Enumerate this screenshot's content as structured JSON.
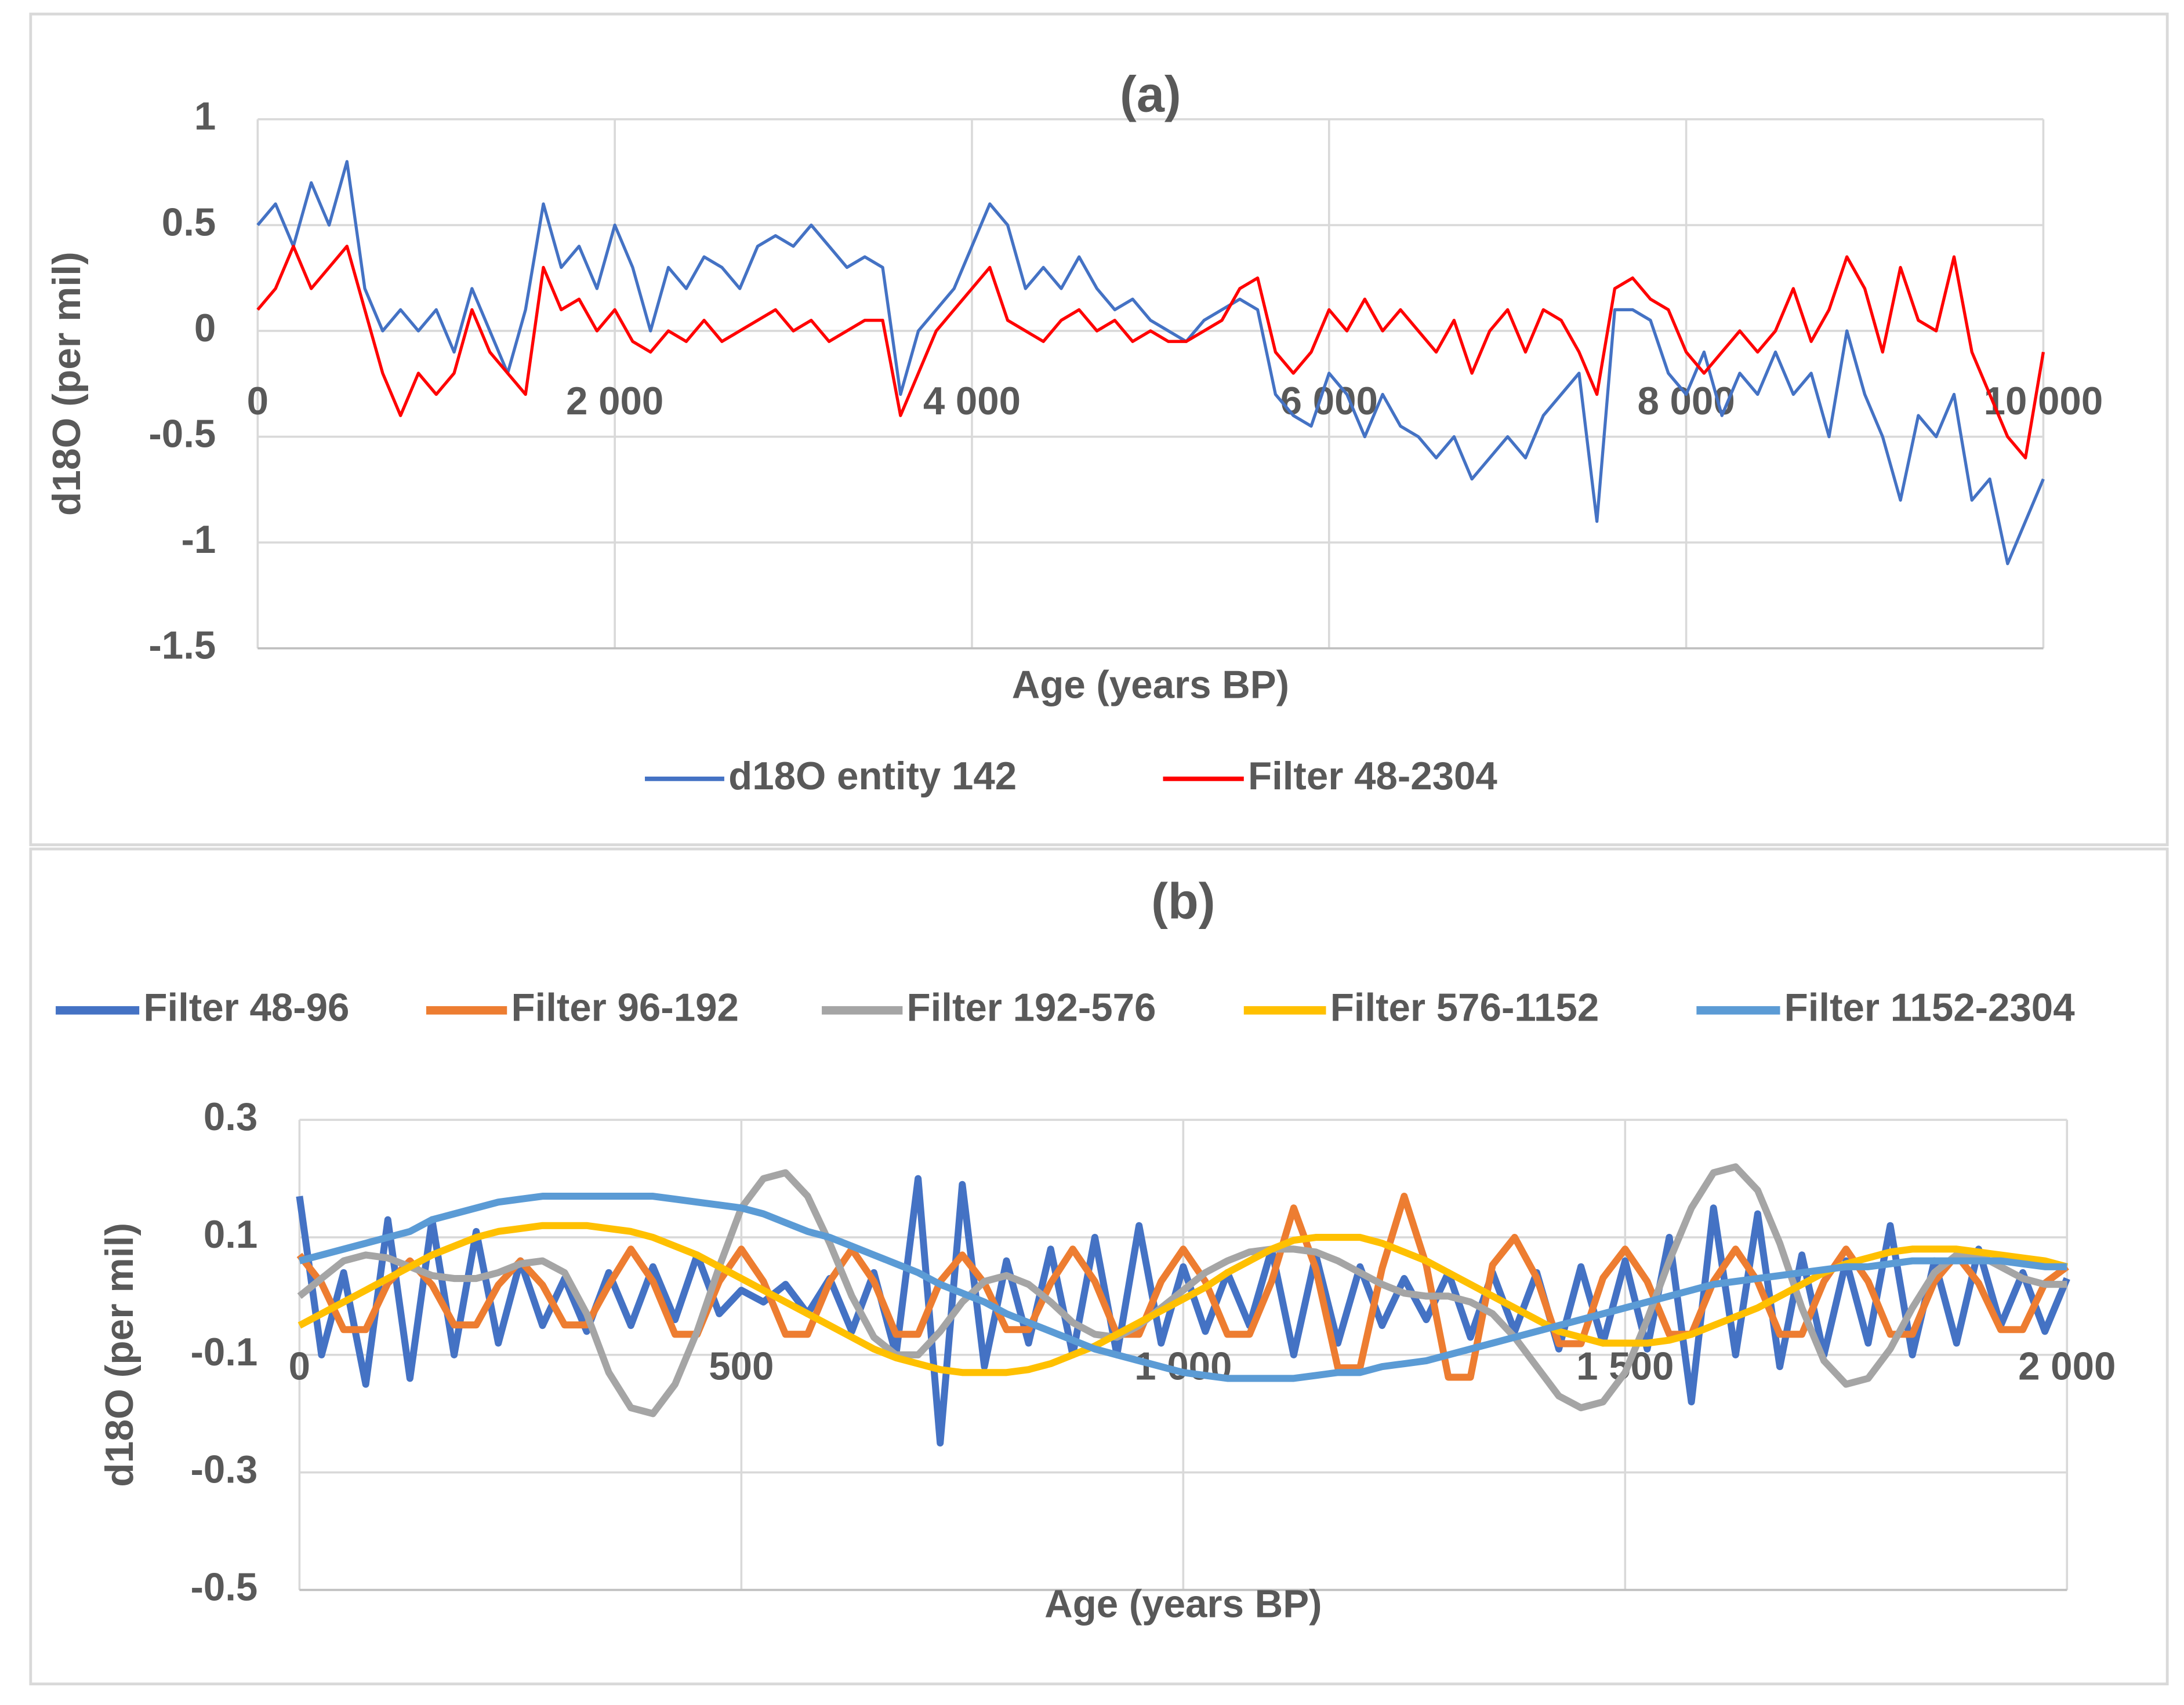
{
  "chart_data": [
    {
      "type": "line",
      "title": "(a)",
      "xlabel": "Age (years BP)",
      "ylabel": "d18O (per mil)",
      "x": [
        0,
        100,
        200,
        300,
        400,
        500,
        600,
        700,
        800,
        900,
        1000,
        1100,
        1200,
        1300,
        1400,
        1500,
        1600,
        1700,
        1800,
        1900,
        2000,
        2100,
        2200,
        2300,
        2400,
        2500,
        2600,
        2700,
        2800,
        2900,
        3000,
        3100,
        3200,
        3300,
        3400,
        3500,
        3600,
        3700,
        3800,
        3900,
        4000,
        4100,
        4200,
        4300,
        4400,
        4500,
        4600,
        4700,
        4800,
        4900,
        5000,
        5100,
        5200,
        5300,
        5400,
        5500,
        5600,
        5700,
        5800,
        5900,
        6000,
        6100,
        6200,
        6300,
        6400,
        6500,
        6600,
        6700,
        6800,
        6900,
        7000,
        7100,
        7200,
        7300,
        7400,
        7500,
        7600,
        7700,
        7800,
        7900,
        8000,
        8100,
        8200,
        8300,
        8400,
        8500,
        8600,
        8700,
        8800,
        8900,
        9000,
        9100,
        9200,
        9300,
        9400,
        9500,
        9600,
        9700,
        9800,
        9900,
        10000
      ],
      "series": [
        {
          "name": "d18O entity 142",
          "color": "#4472c4",
          "values": [
            0.5,
            0.6,
            0.4,
            0.7,
            0.5,
            0.8,
            0.2,
            0.0,
            0.1,
            0.0,
            0.1,
            -0.1,
            0.2,
            0.0,
            -0.2,
            0.1,
            0.6,
            0.3,
            0.4,
            0.2,
            0.5,
            0.3,
            0.0,
            0.3,
            0.2,
            0.35,
            0.3,
            0.2,
            0.4,
            0.45,
            0.4,
            0.5,
            0.4,
            0.3,
            0.35,
            0.3,
            -0.3,
            0.0,
            0.1,
            0.2,
            0.4,
            0.6,
            0.5,
            0.2,
            0.3,
            0.2,
            0.35,
            0.2,
            0.1,
            0.15,
            0.05,
            0.0,
            -0.05,
            0.05,
            0.1,
            0.15,
            0.1,
            -0.3,
            -0.4,
            -0.45,
            -0.2,
            -0.3,
            -0.5,
            -0.3,
            -0.45,
            -0.5,
            -0.6,
            -0.5,
            -0.7,
            -0.6,
            -0.5,
            -0.6,
            -0.4,
            -0.3,
            -0.2,
            -0.9,
            0.1,
            0.1,
            0.05,
            -0.2,
            -0.3,
            -0.1,
            -0.4,
            -0.2,
            -0.3,
            -0.1,
            -0.3,
            -0.2,
            -0.5,
            0.0,
            -0.3,
            -0.5,
            -0.8,
            -0.4,
            -0.5,
            -0.3,
            -0.8,
            -0.7,
            -1.1,
            -0.9,
            -0.7
          ]
        },
        {
          "name": "Filter 48-2304",
          "color": "#ff0000",
          "values": [
            0.1,
            0.2,
            0.4,
            0.2,
            0.3,
            0.4,
            0.1,
            -0.2,
            -0.4,
            -0.2,
            -0.3,
            -0.2,
            0.1,
            -0.1,
            -0.2,
            -0.3,
            0.3,
            0.1,
            0.15,
            0.0,
            0.1,
            -0.05,
            -0.1,
            0.0,
            -0.05,
            0.05,
            -0.05,
            0.0,
            0.05,
            0.1,
            0.0,
            0.05,
            -0.05,
            0.0,
            0.05,
            0.05,
            -0.4,
            -0.2,
            0.0,
            0.1,
            0.2,
            0.3,
            0.05,
            0.0,
            -0.05,
            0.05,
            0.1,
            0.0,
            0.05,
            -0.05,
            0.0,
            -0.05,
            -0.05,
            0.0,
            0.05,
            0.2,
            0.25,
            -0.1,
            -0.2,
            -0.1,
            0.1,
            0.0,
            0.15,
            0.0,
            0.1,
            0.0,
            -0.1,
            0.05,
            -0.2,
            0.0,
            0.1,
            -0.1,
            0.1,
            0.05,
            -0.1,
            -0.3,
            0.2,
            0.25,
            0.15,
            0.1,
            -0.1,
            -0.2,
            -0.1,
            0.0,
            -0.1,
            0.0,
            0.2,
            -0.05,
            0.1,
            0.35,
            0.2,
            -0.1,
            0.3,
            0.05,
            0.0,
            0.35,
            -0.1,
            -0.3,
            -0.5,
            -0.6,
            -0.1
          ]
        }
      ],
      "xlim": [
        0,
        10000
      ],
      "xticks": [
        0,
        {
          "value": 2000,
          "label": "2 000"
        },
        {
          "value": 4000,
          "label": "4 000"
        },
        {
          "value": 6000,
          "label": "6 000"
        },
        {
          "value": 8000,
          "label": "8 000"
        },
        {
          "value": 10000,
          "label": "10 000"
        }
      ],
      "ylim": [
        -1.5,
        1
      ],
      "yticks": [
        -1.5,
        -1,
        -0.5,
        0,
        0.5,
        1
      ],
      "grid": true,
      "legend": "bottom"
    },
    {
      "type": "line",
      "title": "(b)",
      "xlabel": "Age (years BP)",
      "ylabel": "d18O (per mil)",
      "x": [
        0,
        25,
        50,
        75,
        100,
        125,
        150,
        175,
        200,
        225,
        250,
        275,
        300,
        325,
        350,
        375,
        400,
        425,
        450,
        475,
        500,
        525,
        550,
        575,
        600,
        625,
        650,
        675,
        700,
        725,
        750,
        775,
        800,
        825,
        850,
        875,
        900,
        925,
        950,
        975,
        1000,
        1025,
        1050,
        1075,
        1100,
        1125,
        1150,
        1175,
        1200,
        1225,
        1250,
        1275,
        1300,
        1325,
        1350,
        1375,
        1400,
        1425,
        1450,
        1475,
        1500,
        1525,
        1550,
        1575,
        1600,
        1625,
        1650,
        1675,
        1700,
        1725,
        1750,
        1775,
        1800,
        1825,
        1850,
        1875,
        1900,
        1925,
        1950,
        1975,
        2000
      ],
      "series": [
        {
          "name": "Filter 48-96",
          "color": "#4472c4",
          "values": [
            0.17,
            -0.1,
            0.04,
            -0.15,
            0.13,
            -0.14,
            0.13,
            -0.1,
            0.11,
            -0.08,
            0.06,
            -0.05,
            0.03,
            -0.06,
            0.04,
            -0.05,
            0.05,
            -0.04,
            0.07,
            -0.03,
            0.01,
            -0.01,
            0.02,
            -0.03,
            0.03,
            -0.06,
            0.04,
            -0.1,
            0.2,
            -0.25,
            0.19,
            -0.12,
            0.06,
            -0.08,
            0.08,
            -0.1,
            0.1,
            -0.1,
            0.12,
            -0.08,
            0.05,
            -0.06,
            0.04,
            -0.05,
            0.08,
            -0.1,
            0.07,
            -0.08,
            0.05,
            -0.05,
            0.03,
            -0.04,
            0.04,
            -0.07,
            0.04,
            -0.06,
            0.04,
            -0.09,
            0.05,
            -0.08,
            0.06,
            -0.09,
            0.1,
            -0.18,
            0.15,
            -0.1,
            0.14,
            -0.12,
            0.07,
            -0.1,
            0.06,
            -0.08,
            0.12,
            -0.1,
            0.06,
            -0.08,
            0.08,
            -0.05,
            0.04,
            -0.06,
            0.03
          ]
        },
        {
          "name": "Filter 96-192",
          "color": "#ed7d31",
          "values": [
            0.07,
            0.022,
            -0.057,
            -0.057,
            0.022,
            0.06,
            0.019,
            -0.049,
            -0.049,
            0.019,
            0.06,
            0.019,
            -0.049,
            -0.049,
            0.019,
            0.08,
            0.025,
            -0.065,
            -0.065,
            0.025,
            0.08,
            0.025,
            -0.065,
            -0.065,
            0.025,
            0.08,
            0.025,
            -0.065,
            -0.065,
            0.025,
            0.07,
            0.022,
            -0.057,
            -0.057,
            0.022,
            0.08,
            0.025,
            -0.065,
            -0.065,
            0.025,
            0.08,
            0.025,
            -0.065,
            -0.065,
            0.025,
            0.15,
            0.047,
            -0.122,
            -0.122,
            0.047,
            0.17,
            0.053,
            -0.138,
            -0.138,
            0.053,
            0.1,
            0.031,
            -0.081,
            -0.081,
            0.031,
            0.08,
            0.025,
            -0.065,
            -0.065,
            0.025,
            0.08,
            0.025,
            -0.065,
            -0.065,
            0.025,
            0.08,
            0.025,
            -0.065,
            -0.065,
            0.025,
            0.07,
            0.022,
            -0.057,
            -0.057,
            0.022,
            0.05
          ]
        },
        {
          "name": "Filter 192-576",
          "color": "#a5a5a5",
          "values": [
            0.0,
            0.03,
            0.06,
            0.07,
            0.065,
            0.05,
            0.035,
            0.03,
            0.03,
            0.04,
            0.055,
            0.06,
            0.04,
            -0.03,
            -0.13,
            -0.19,
            -0.2,
            -0.15,
            -0.06,
            0.05,
            0.15,
            0.2,
            0.21,
            0.17,
            0.09,
            0.0,
            -0.07,
            -0.1,
            -0.1,
            -0.06,
            -0.01,
            0.025,
            0.035,
            0.02,
            -0.01,
            -0.045,
            -0.065,
            -0.07,
            -0.05,
            -0.02,
            0.01,
            0.04,
            0.06,
            0.075,
            0.08,
            0.08,
            0.075,
            0.06,
            0.04,
            0.02,
            0.005,
            0.0,
            0.0,
            -0.01,
            -0.03,
            -0.07,
            -0.12,
            -0.17,
            -0.19,
            -0.18,
            -0.13,
            -0.04,
            0.06,
            0.15,
            0.21,
            0.22,
            0.18,
            0.09,
            -0.02,
            -0.11,
            -0.15,
            -0.14,
            -0.09,
            -0.02,
            0.04,
            0.07,
            0.07,
            0.05,
            0.03,
            0.02,
            0.02
          ]
        },
        {
          "name": "Filter 576-1152",
          "color": "#ffc000",
          "values": [
            -0.05,
            -0.03,
            -0.01,
            0.01,
            0.03,
            0.05,
            0.07,
            0.085,
            0.1,
            0.11,
            0.115,
            0.12,
            0.12,
            0.12,
            0.115,
            0.11,
            0.1,
            0.085,
            0.07,
            0.05,
            0.03,
            0.01,
            -0.01,
            -0.03,
            -0.05,
            -0.07,
            -0.09,
            -0.105,
            -0.115,
            -0.125,
            -0.13,
            -0.13,
            -0.13,
            -0.125,
            -0.115,
            -0.1,
            -0.085,
            -0.065,
            -0.045,
            -0.025,
            -0.005,
            0.015,
            0.04,
            0.06,
            0.08,
            0.095,
            0.1,
            0.1,
            0.1,
            0.09,
            0.075,
            0.06,
            0.04,
            0.02,
            0.0,
            -0.02,
            -0.04,
            -0.06,
            -0.07,
            -0.08,
            -0.08,
            -0.08,
            -0.075,
            -0.065,
            -0.05,
            -0.035,
            -0.02,
            0.0,
            0.02,
            0.04,
            0.055,
            0.065,
            0.075,
            0.08,
            0.08,
            0.08,
            0.075,
            0.07,
            0.065,
            0.06,
            0.05
          ]
        },
        {
          "name": "Filter 1152-2304",
          "color": "#5b9bd5",
          "values": [
            0.06,
            0.07,
            0.08,
            0.09,
            0.1,
            0.11,
            0.13,
            0.14,
            0.15,
            0.16,
            0.165,
            0.17,
            0.17,
            0.17,
            0.17,
            0.17,
            0.17,
            0.165,
            0.16,
            0.155,
            0.15,
            0.14,
            0.125,
            0.11,
            0.1,
            0.085,
            0.07,
            0.055,
            0.04,
            0.02,
            0.005,
            -0.01,
            -0.03,
            -0.045,
            -0.06,
            -0.075,
            -0.09,
            -0.1,
            -0.11,
            -0.12,
            -0.13,
            -0.135,
            -0.14,
            -0.14,
            -0.14,
            -0.14,
            -0.135,
            -0.13,
            -0.13,
            -0.12,
            -0.115,
            -0.11,
            -0.1,
            -0.09,
            -0.08,
            -0.07,
            -0.06,
            -0.05,
            -0.04,
            -0.03,
            -0.02,
            -0.01,
            0.0,
            0.01,
            0.02,
            0.025,
            0.03,
            0.035,
            0.04,
            0.045,
            0.05,
            0.05,
            0.055,
            0.06,
            0.06,
            0.06,
            0.06,
            0.06,
            0.055,
            0.05,
            0.05
          ]
        }
      ],
      "xlim": [
        0,
        2000
      ],
      "xticks": [
        0,
        500,
        {
          "value": 1000,
          "label": "1 000"
        },
        {
          "value": 1500,
          "label": "1 500"
        },
        {
          "value": 2000,
          "label": "2 000"
        }
      ],
      "ylim": [
        -0.5,
        0.3
      ],
      "yticks": [
        -0.5,
        -0.3,
        -0.1,
        0.1,
        0.3
      ],
      "grid": true,
      "legend": "top"
    }
  ]
}
